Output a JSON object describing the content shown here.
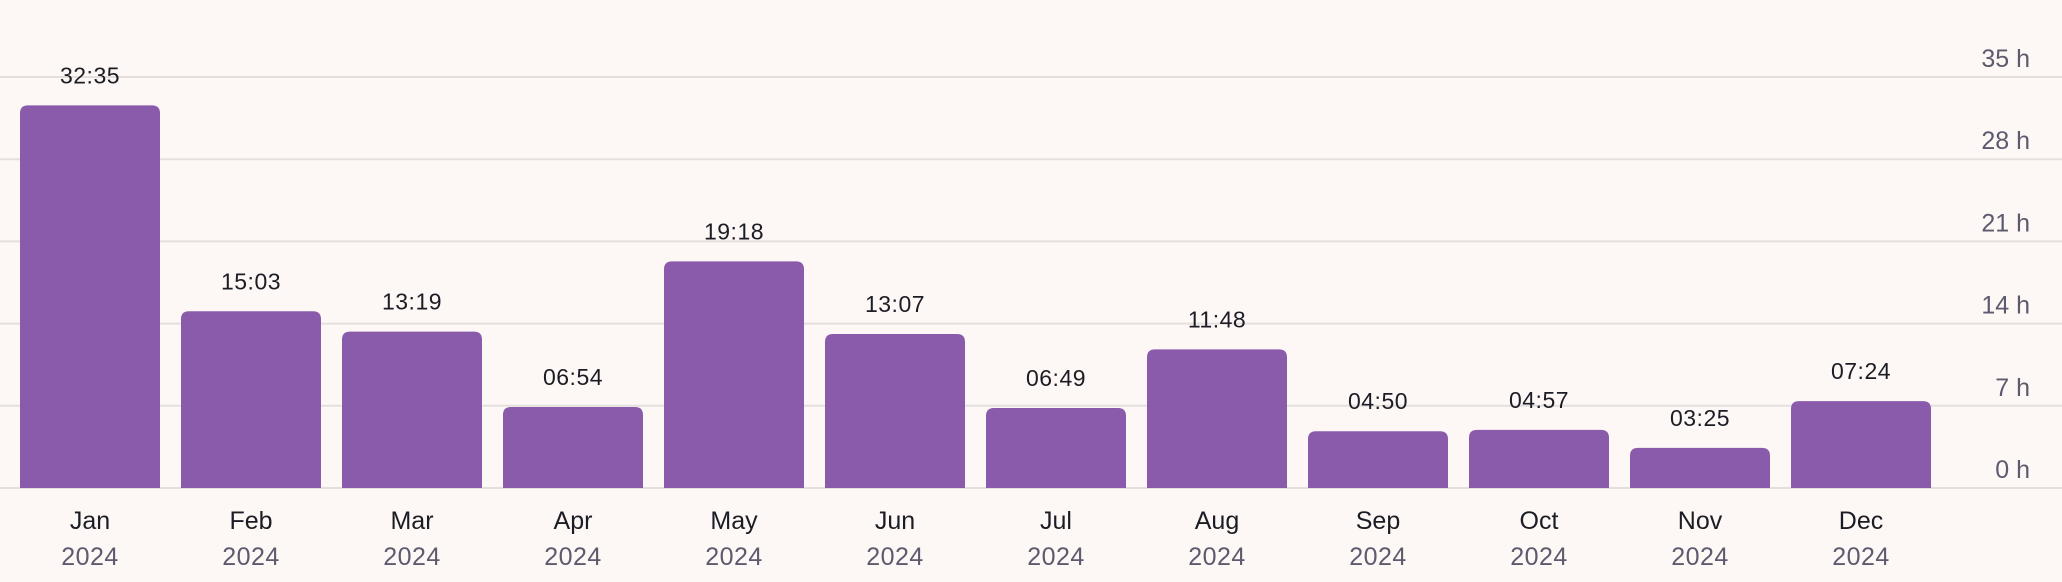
{
  "chart_data": {
    "type": "bar",
    "categories": [
      "Jan",
      "Feb",
      "Mar",
      "Apr",
      "May",
      "Jun",
      "Jul",
      "Aug",
      "Sep",
      "Oct",
      "Nov",
      "Dec"
    ],
    "years": [
      "2024",
      "2024",
      "2024",
      "2024",
      "2024",
      "2024",
      "2024",
      "2024",
      "2024",
      "2024",
      "2024",
      "2024"
    ],
    "values_hours": [
      32.583,
      15.05,
      13.317,
      6.9,
      19.3,
      13.117,
      6.817,
      11.8,
      4.833,
      4.95,
      3.417,
      7.4
    ],
    "value_labels": [
      "32:35",
      "15:03",
      "13:19",
      "06:54",
      "19:18",
      "13:07",
      "06:49",
      "11:48",
      "04:50",
      "04:57",
      "03:25",
      "07:24"
    ],
    "ylim": [
      0,
      35
    ],
    "yticks": [
      0,
      7,
      14,
      21,
      28,
      35
    ],
    "ytick_labels": [
      "0 h",
      "7 h",
      "14 h",
      "21 h",
      "28 h",
      "35 h"
    ],
    "y_axis_position": "right",
    "grid": true,
    "colors": {
      "bar": "#8a5aab",
      "grid": "#e4dfdd",
      "background": "#fdf8f6"
    }
  }
}
